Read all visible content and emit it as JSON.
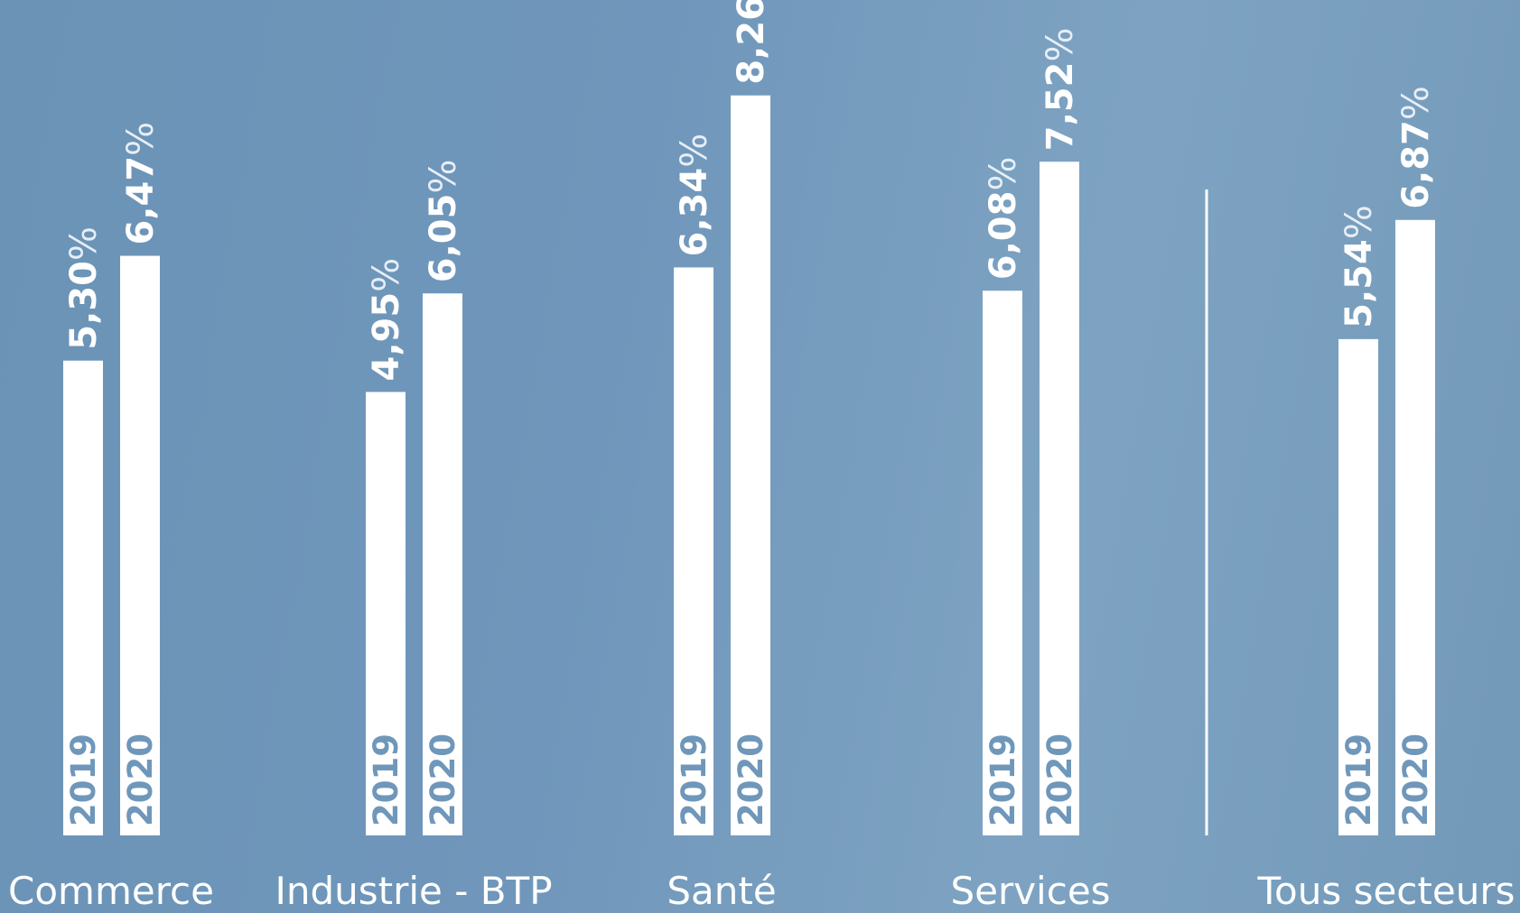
{
  "chart_data": {
    "type": "bar",
    "title": "",
    "xlabel": "",
    "ylabel": "",
    "categories": [
      "Commerce",
      "Industrie - BTP",
      "Santé",
      "Services",
      "Tous secteurs"
    ],
    "series": [
      {
        "name": "2019",
        "values": [
          5.3,
          4.95,
          6.34,
          6.08,
          5.54
        ],
        "labels": [
          "5,30",
          "4,95",
          "6,34",
          "6,08",
          "5,54"
        ]
      },
      {
        "name": "2020",
        "values": [
          6.47,
          6.05,
          8.26,
          7.52,
          6.87
        ],
        "labels": [
          "6,47",
          "6,05",
          "8,26",
          "7,52",
          "6,87"
        ]
      }
    ],
    "value_suffix": "%",
    "ylim": [
      0,
      9.3
    ],
    "grid": false,
    "legend": "none",
    "separator_before_category": 4,
    "colors": {
      "background": "#7097bb",
      "bar": "#ffffff",
      "year_text": "#6f97ba",
      "text": "#ffffff"
    }
  }
}
